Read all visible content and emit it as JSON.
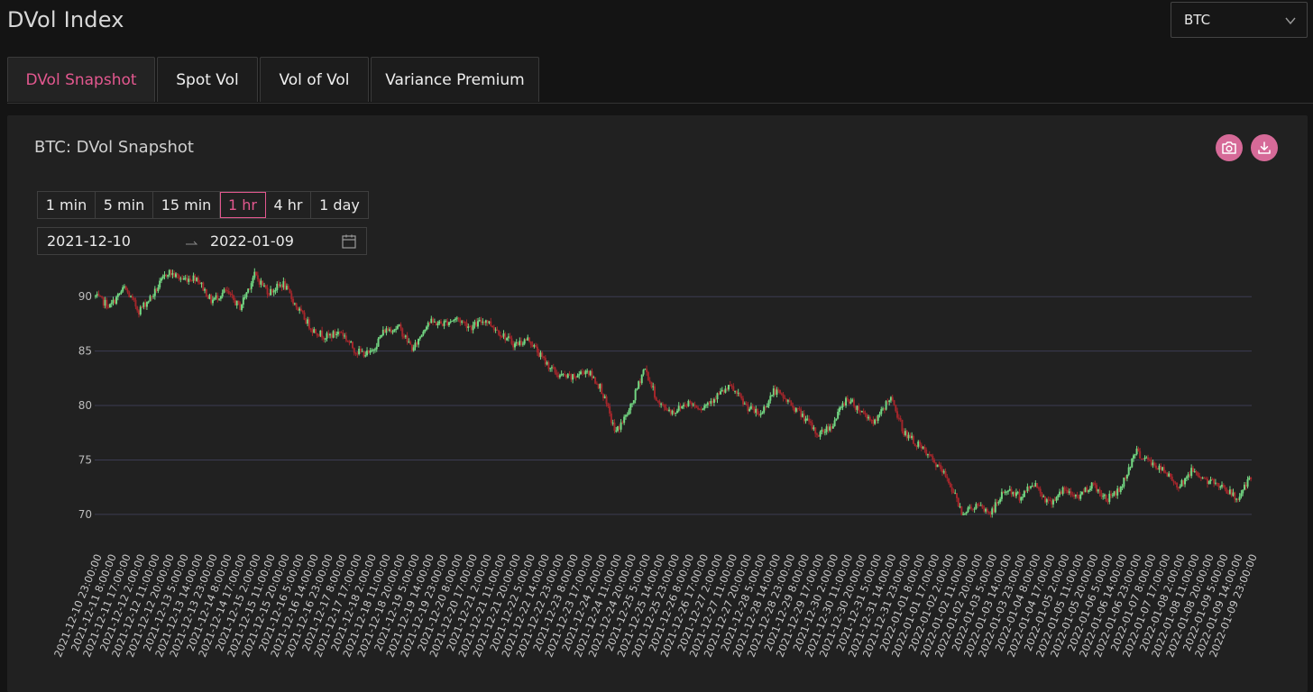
{
  "header": {
    "title": "DVol Index"
  },
  "asset_select": {
    "value": "BTC"
  },
  "tabs": [
    {
      "label": "DVol Snapshot",
      "active": true
    },
    {
      "label": "Spot Vol",
      "active": false
    },
    {
      "label": "Vol of Vol",
      "active": false
    },
    {
      "label": "Variance Premium",
      "active": false
    }
  ],
  "card": {
    "title": "BTC: DVol Snapshot",
    "snapshot_icon": "camera-icon",
    "download_icon": "download-icon"
  },
  "intervals": [
    {
      "label": "1 min",
      "active": false
    },
    {
      "label": "5 min",
      "active": false
    },
    {
      "label": "15 min",
      "active": false
    },
    {
      "label": "1 hr",
      "active": true
    },
    {
      "label": "4 hr",
      "active": false
    },
    {
      "label": "1 day",
      "active": false
    }
  ],
  "date_range": {
    "from": "2021-12-10",
    "to": "2022-01-09",
    "separator_icon": "arrow-right-icon",
    "calendar_icon": "calendar-icon"
  },
  "colors": {
    "accent": "#e3588f",
    "up": "#73d883",
    "down": "#a3262b",
    "grid": "#3c3c52"
  },
  "chart_data": {
    "type": "candlestick",
    "title": "",
    "xlabel": "",
    "ylabel": "",
    "ylim": [
      68.5,
      92.5
    ],
    "yticks": [
      70,
      75,
      80,
      85,
      90
    ],
    "grid": true,
    "xtick_labels": [
      "2021-12-10 23:00:00",
      "2021-12-11 8:00:00",
      "2021-12-11 17:00:00",
      "2021-12-12 2:00:00",
      "2021-12-12 11:00:00",
      "2021-12-12 20:00:00",
      "2021-12-13 5:00:00",
      "2021-12-13 14:00:00",
      "2021-12-13 23:00:00",
      "2021-12-14 8:00:00",
      "2021-12-14 17:00:00",
      "2021-12-15 2:00:00",
      "2021-12-15 11:00:00",
      "2021-12-15 20:00:00",
      "2021-12-16 5:00:00",
      "2021-12-16 14:00:00",
      "2021-12-16 23:00:00",
      "2021-12-17 8:00:00",
      "2021-12-17 17:00:00",
      "2021-12-18 2:00:00",
      "2021-12-18 11:00:00",
      "2021-12-18 20:00:00",
      "2021-12-19 5:00:00",
      "2021-12-19 14:00:00",
      "2021-12-19 23:00:00",
      "2021-12-20 8:00:00",
      "2021-12-20 17:00:00",
      "2021-12-21 2:00:00",
      "2021-12-21 11:00:00",
      "2021-12-21 20:00:00",
      "2021-12-22 5:00:00",
      "2021-12-22 14:00:00",
      "2021-12-22 23:00:00",
      "2021-12-23 8:00:00",
      "2021-12-23 17:00:00",
      "2021-12-24 2:00:00",
      "2021-12-24 11:00:00",
      "2021-12-24 20:00:00",
      "2021-12-25 5:00:00",
      "2021-12-25 14:00:00",
      "2021-12-25 23:00:00",
      "2021-12-26 8:00:00",
      "2021-12-26 17:00:00",
      "2021-12-27 2:00:00",
      "2021-12-27 11:00:00",
      "2021-12-27 20:00:00",
      "2021-12-28 5:00:00",
      "2021-12-28 14:00:00",
      "2021-12-28 23:00:00",
      "2021-12-29 8:00:00",
      "2021-12-29 17:00:00",
      "2021-12-30 2:00:00",
      "2021-12-30 11:00:00",
      "2021-12-30 20:00:00",
      "2021-12-31 5:00:00",
      "2021-12-31 14:00:00",
      "2021-12-31 23:00:00",
      "2022-01-01 8:00:00",
      "2022-01-01 17:00:00",
      "2022-01-02 2:00:00",
      "2022-01-02 11:00:00",
      "2022-01-02 20:00:00",
      "2022-01-03 5:00:00",
      "2022-01-03 14:00:00",
      "2022-01-03 23:00:00",
      "2022-01-04 8:00:00",
      "2022-01-04 17:00:00",
      "2022-01-05 2:00:00",
      "2022-01-05 11:00:00",
      "2022-01-05 20:00:00",
      "2022-01-06 5:00:00",
      "2022-01-06 14:00:00",
      "2022-01-06 23:00:00",
      "2022-01-07 8:00:00",
      "2022-01-07 17:00:00",
      "2022-01-08 2:00:00",
      "2022-01-08 11:00:00",
      "2022-01-08 20:00:00",
      "2022-01-09 5:00:00",
      "2022-01-09 14:00:00",
      "2022-01-09 23:00:00"
    ],
    "close_path": [
      [
        0,
        90.0
      ],
      [
        1,
        89.1
      ],
      [
        2,
        90.8
      ],
      [
        3,
        88.7
      ],
      [
        4,
        90.2
      ],
      [
        5,
        92.3
      ],
      [
        6,
        91.6
      ],
      [
        7,
        91.8
      ],
      [
        8,
        89.6
      ],
      [
        9,
        90.5
      ],
      [
        10,
        89.0
      ],
      [
        11,
        92.0
      ],
      [
        12,
        90.4
      ],
      [
        13,
        91.2
      ],
      [
        14,
        88.9
      ],
      [
        15,
        87.0
      ],
      [
        16,
        86.3
      ],
      [
        17,
        86.8
      ],
      [
        18,
        85.0
      ],
      [
        19,
        84.7
      ],
      [
        20,
        86.9
      ],
      [
        21,
        87.2
      ],
      [
        22,
        85.1
      ],
      [
        23,
        87.7
      ],
      [
        24,
        87.5
      ],
      [
        25,
        88.0
      ],
      [
        26,
        87.2
      ],
      [
        27,
        87.9
      ],
      [
        28,
        86.7
      ],
      [
        29,
        85.6
      ],
      [
        30,
        86.1
      ],
      [
        31,
        84.2
      ],
      [
        32,
        82.8
      ],
      [
        33,
        82.5
      ],
      [
        34,
        83.3
      ],
      [
        35,
        81.6
      ],
      [
        36,
        77.5
      ],
      [
        37,
        79.6
      ],
      [
        38,
        83.5
      ],
      [
        39,
        80.1
      ],
      [
        40,
        79.4
      ],
      [
        41,
        80.3
      ],
      [
        42,
        79.8
      ],
      [
        43,
        80.9
      ],
      [
        44,
        81.7
      ],
      [
        45,
        80.0
      ],
      [
        46,
        79.1
      ],
      [
        47,
        81.4
      ],
      [
        48,
        80.3
      ],
      [
        49,
        79.0
      ],
      [
        50,
        77.3
      ],
      [
        51,
        78.2
      ],
      [
        52,
        80.7
      ],
      [
        53,
        79.5
      ],
      [
        54,
        78.4
      ],
      [
        55,
        80.8
      ],
      [
        56,
        77.5
      ],
      [
        57,
        76.3
      ],
      [
        58,
        74.9
      ],
      [
        59,
        73.3
      ],
      [
        60,
        70.2
      ],
      [
        61,
        70.8
      ],
      [
        62,
        70.1
      ],
      [
        63,
        72.3
      ],
      [
        64,
        71.6
      ],
      [
        65,
        72.9
      ],
      [
        66,
        71.0
      ],
      [
        67,
        72.2
      ],
      [
        68,
        71.6
      ],
      [
        69,
        72.8
      ],
      [
        70,
        71.4
      ],
      [
        71,
        72.4
      ],
      [
        72,
        75.8
      ],
      [
        73,
        74.8
      ],
      [
        74,
        73.9
      ],
      [
        75,
        72.6
      ],
      [
        76,
        74.1
      ],
      [
        77,
        73.0
      ],
      [
        78,
        72.7
      ],
      [
        79,
        71.4
      ],
      [
        80,
        73.3
      ]
    ]
  }
}
